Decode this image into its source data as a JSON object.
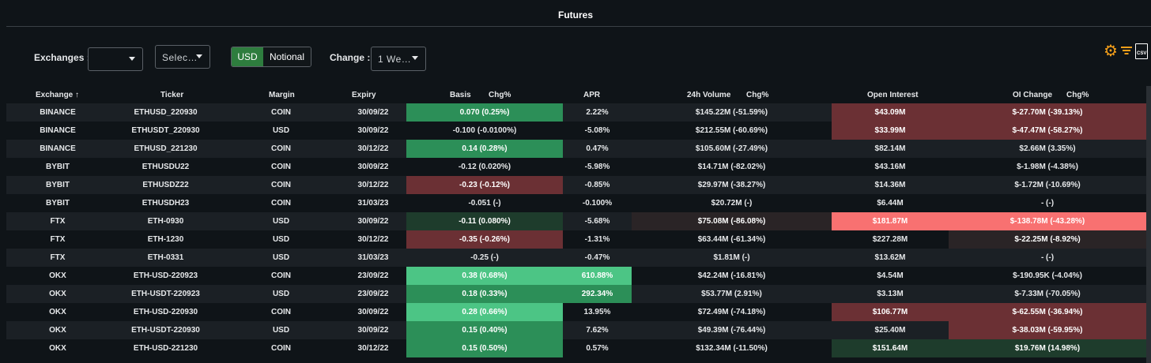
{
  "title": "Futures",
  "filters": {
    "exchanges_label": "Exchanges :",
    "exchanges_value": "",
    "select_placeholder": "Selec…",
    "currency_options": [
      "USD",
      "Notional"
    ],
    "currency_selected": "USD",
    "change_label": "Change :",
    "change_value": "1 We…"
  },
  "toolbar_icons": [
    "gear-icon",
    "filter-icon",
    "csv-icon"
  ],
  "toolbar": {
    "csv_label": "CSV"
  },
  "colors": {
    "accent": "#f6a01a",
    "toggle_active": "#2e7d3e",
    "positive_strong": "#4cc585",
    "negative_strong": "#f87171"
  },
  "columns": {
    "exchange": "Exchange",
    "sort_indicator": "↑",
    "ticker": "Ticker",
    "margin": "Margin",
    "expiry": "Expiry",
    "basis": "Basis",
    "basis_chg": "Chg%",
    "apr": "APR",
    "volume": "24h Volume",
    "volume_chg": "Chg%",
    "open_interest": "Open Interest",
    "oi_change": "OI Change",
    "oi_chg": "Chg%"
  },
  "rows": [
    {
      "exchange": "BINANCE",
      "ticker": "ETHUSD_220930",
      "margin": "COIN",
      "expiry": "30/09/22",
      "basis": "0.070 (0.25%)",
      "apr": "2.22%",
      "volume": "$145.22M (-51.59%)",
      "oi": "$43.09M",
      "oi_change": "$-27.70M (-39.13%)"
    },
    {
      "exchange": "BINANCE",
      "ticker": "ETHUSDT_220930",
      "margin": "USD",
      "expiry": "30/09/22",
      "basis": "-0.100 (-0.0100%)",
      "apr": "-5.08%",
      "volume": "$212.55M (-60.69%)",
      "oi": "$33.99M",
      "oi_change": "$-47.47M (-58.27%)"
    },
    {
      "exchange": "BINANCE",
      "ticker": "ETHUSD_221230",
      "margin": "COIN",
      "expiry": "30/12/22",
      "basis": "0.14 (0.28%)",
      "apr": "0.47%",
      "volume": "$105.60M (-27.49%)",
      "oi": "$82.14M",
      "oi_change": "$2.66M (3.35%)"
    },
    {
      "exchange": "BYBIT",
      "ticker": "ETHUSDU22",
      "margin": "COIN",
      "expiry": "30/09/22",
      "basis": "-0.12 (0.020%)",
      "apr": "-5.98%",
      "volume": "$14.71M (-82.02%)",
      "oi": "$43.16M",
      "oi_change": "$-1.98M (-4.38%)"
    },
    {
      "exchange": "BYBIT",
      "ticker": "ETHUSDZ22",
      "margin": "COIN",
      "expiry": "30/12/22",
      "basis": "-0.23 (-0.12%)",
      "apr": "-0.85%",
      "volume": "$29.97M (-38.27%)",
      "oi": "$14.36M",
      "oi_change": "$-1.72M (-10.69%)"
    },
    {
      "exchange": "BYBIT",
      "ticker": "ETHUSDH23",
      "margin": "COIN",
      "expiry": "31/03/23",
      "basis": "-0.051 (-)",
      "apr": "-0.100%",
      "volume": "$20.72M (-)",
      "oi": "$6.44M",
      "oi_change": "- (-)"
    },
    {
      "exchange": "FTX",
      "ticker": "ETH-0930",
      "margin": "USD",
      "expiry": "30/09/22",
      "basis": "-0.11 (0.080%)",
      "apr": "-5.68%",
      "volume": "$75.08M (-86.08%)",
      "oi": "$181.87M",
      "oi_change": "$-138.78M (-43.28%)"
    },
    {
      "exchange": "FTX",
      "ticker": "ETH-1230",
      "margin": "USD",
      "expiry": "30/12/22",
      "basis": "-0.35 (-0.26%)",
      "apr": "-1.31%",
      "volume": "$63.44M (-61.34%)",
      "oi": "$227.28M",
      "oi_change": "$-22.25M (-8.92%)"
    },
    {
      "exchange": "FTX",
      "ticker": "ETH-0331",
      "margin": "USD",
      "expiry": "31/03/23",
      "basis": "-0.25 (-)",
      "apr": "-0.47%",
      "volume": "$1.81M (-)",
      "oi": "$13.62M",
      "oi_change": "- (-)"
    },
    {
      "exchange": "OKX",
      "ticker": "ETH-USD-220923",
      "margin": "COIN",
      "expiry": "23/09/22",
      "basis": "0.38 (0.68%)",
      "apr": "610.88%",
      "volume": "$42.24M (-16.81%)",
      "oi": "$4.54M",
      "oi_change": "$-190.95K (-4.04%)"
    },
    {
      "exchange": "OKX",
      "ticker": "ETH-USDT-220923",
      "margin": "USD",
      "expiry": "23/09/22",
      "basis": "0.18 (0.33%)",
      "apr": "292.34%",
      "volume": "$53.77M (2.91%)",
      "oi": "$3.13M",
      "oi_change": "$-7.33M (-70.05%)"
    },
    {
      "exchange": "OKX",
      "ticker": "ETH-USD-220930",
      "margin": "COIN",
      "expiry": "30/09/22",
      "basis": "0.28 (0.66%)",
      "apr": "13.95%",
      "volume": "$72.49M (-74.18%)",
      "oi": "$106.77M",
      "oi_change": "$-62.55M (-36.94%)"
    },
    {
      "exchange": "OKX",
      "ticker": "ETH-USDT-220930",
      "margin": "USD",
      "expiry": "30/09/22",
      "basis": "0.15 (0.40%)",
      "apr": "7.62%",
      "volume": "$49.39M (-76.44%)",
      "oi": "$25.40M",
      "oi_change": "$-38.03M (-59.95%)"
    },
    {
      "exchange": "OKX",
      "ticker": "ETH-USD-221230",
      "margin": "COIN",
      "expiry": "30/12/22",
      "basis": "0.15 (0.50%)",
      "apr": "0.57%",
      "volume": "$132.34M (-11.50%)",
      "oi": "$151.64M",
      "oi_change": "$19.76M (14.98%)"
    }
  ]
}
